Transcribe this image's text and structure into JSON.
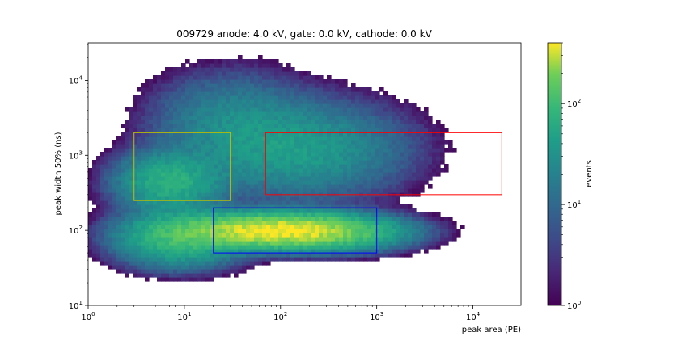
{
  "chart_data": {
    "type": "heatmap",
    "title": "009729 anode: 4.0 kV, gate: 0.0 kV, cathode: 0.0 kV",
    "xlabel": "peak area (PE)",
    "ylabel": "peak width 50% (ns)",
    "xscale": "log",
    "yscale": "log",
    "xlim": [
      1,
      31623
    ],
    "ylim": [
      10,
      31623
    ],
    "x_ticks": [
      {
        "base": "10",
        "exp": "0",
        "value": 1
      },
      {
        "base": "10",
        "exp": "1",
        "value": 10
      },
      {
        "base": "10",
        "exp": "2",
        "value": 100
      },
      {
        "base": "10",
        "exp": "3",
        "value": 1000
      },
      {
        "base": "10",
        "exp": "4",
        "value": 10000
      }
    ],
    "y_ticks": [
      {
        "base": "10",
        "exp": "1",
        "value": 10
      },
      {
        "base": "10",
        "exp": "2",
        "value": 100
      },
      {
        "base": "10",
        "exp": "3",
        "value": 1000
      },
      {
        "base": "10",
        "exp": "4",
        "value": 10000
      }
    ],
    "colorbar": {
      "label": "events",
      "scale": "log",
      "range": [
        1,
        400
      ],
      "colormap": "viridis",
      "ticks": [
        {
          "base": "10",
          "exp": "0",
          "value": 1
        },
        {
          "base": "10",
          "exp": "1",
          "value": 10
        },
        {
          "base": "10",
          "exp": "2",
          "value": 100
        }
      ]
    },
    "density_clusters": [
      {
        "x_center": 100,
        "y_center": 100,
        "x_spread_log": 0.55,
        "y_spread_log": 0.12,
        "peak": 400,
        "weight": 1.0
      },
      {
        "x_center": 9,
        "y_center": 80,
        "x_spread_log": 0.35,
        "y_spread_log": 0.2,
        "peak": 90,
        "weight": 0.6
      },
      {
        "x_center": 7,
        "y_center": 450,
        "x_spread_log": 0.3,
        "y_spread_log": 0.22,
        "peak": 70,
        "weight": 0.55
      },
      {
        "x_center": 150,
        "y_center": 1200,
        "x_spread_log": 0.6,
        "y_spread_log": 0.35,
        "peak": 40,
        "weight": 0.8
      },
      {
        "x_center": 30,
        "y_center": 3000,
        "x_spread_log": 0.45,
        "y_spread_log": 0.35,
        "peak": 20,
        "weight": 0.5
      },
      {
        "x_center": 500,
        "y_center": 80,
        "x_spread_log": 0.35,
        "y_spread_log": 0.12,
        "peak": 20,
        "weight": 0.35
      }
    ],
    "regions": [
      {
        "color": "#bfbf00",
        "x": [
          3,
          30
        ],
        "y": [
          250,
          2000
        ]
      },
      {
        "color": "#ff0000",
        "x": [
          70,
          20000
        ],
        "y": [
          300,
          2000
        ]
      },
      {
        "color": "#0000ff",
        "x": [
          20,
          1000
        ],
        "y": [
          50,
          200
        ]
      }
    ]
  }
}
